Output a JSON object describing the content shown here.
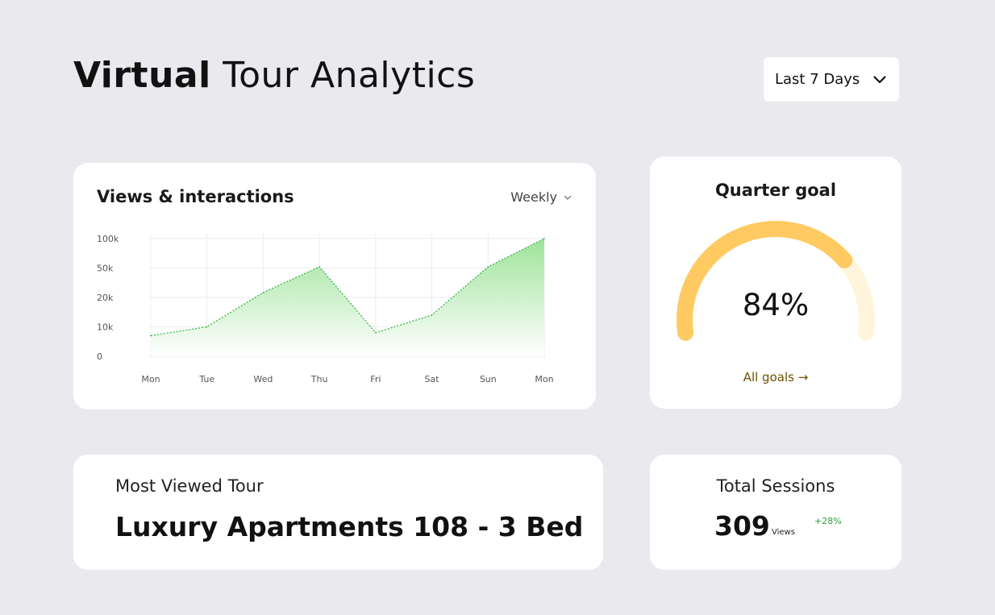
{
  "header": {
    "title_bold": "Virtual",
    "title_rest": "Tour Analytics",
    "range_label": "Last 7 Days"
  },
  "views_card": {
    "title": "Views & interactions",
    "period_label": "Weekly"
  },
  "chart_data": {
    "type": "area",
    "categories": [
      "Mon",
      "Tue",
      "Wed",
      "Thu",
      "Fri",
      "Sat",
      "Sun",
      "Mon"
    ],
    "values": [
      7000,
      10000,
      25000,
      52000,
      8000,
      14000,
      52000,
      100000
    ],
    "y_ticks": [
      "100k",
      "50k",
      "20k",
      "10k",
      "0"
    ],
    "y_tick_values": [
      100000,
      50000,
      20000,
      10000,
      0
    ],
    "scale": "categorical-ticks",
    "grid": true,
    "line_style": "dotted",
    "colors": {
      "line": "#3bb54a",
      "fill_top": "#9ee39a",
      "fill_bottom": "#ffffff"
    }
  },
  "goal_card": {
    "title": "Quarter goal",
    "value_text": "84%",
    "progress": 0.84,
    "link_label": "All goals",
    "colors": {
      "arc": "#ffca62",
      "track": "#fff4dc"
    }
  },
  "tour_card": {
    "label": "Most Viewed Tour",
    "name": "Luxury Apartments 108 - 3 Bed"
  },
  "sessions_card": {
    "title": "Total Sessions",
    "value": "309",
    "unit": "Views",
    "change": "+28%"
  }
}
